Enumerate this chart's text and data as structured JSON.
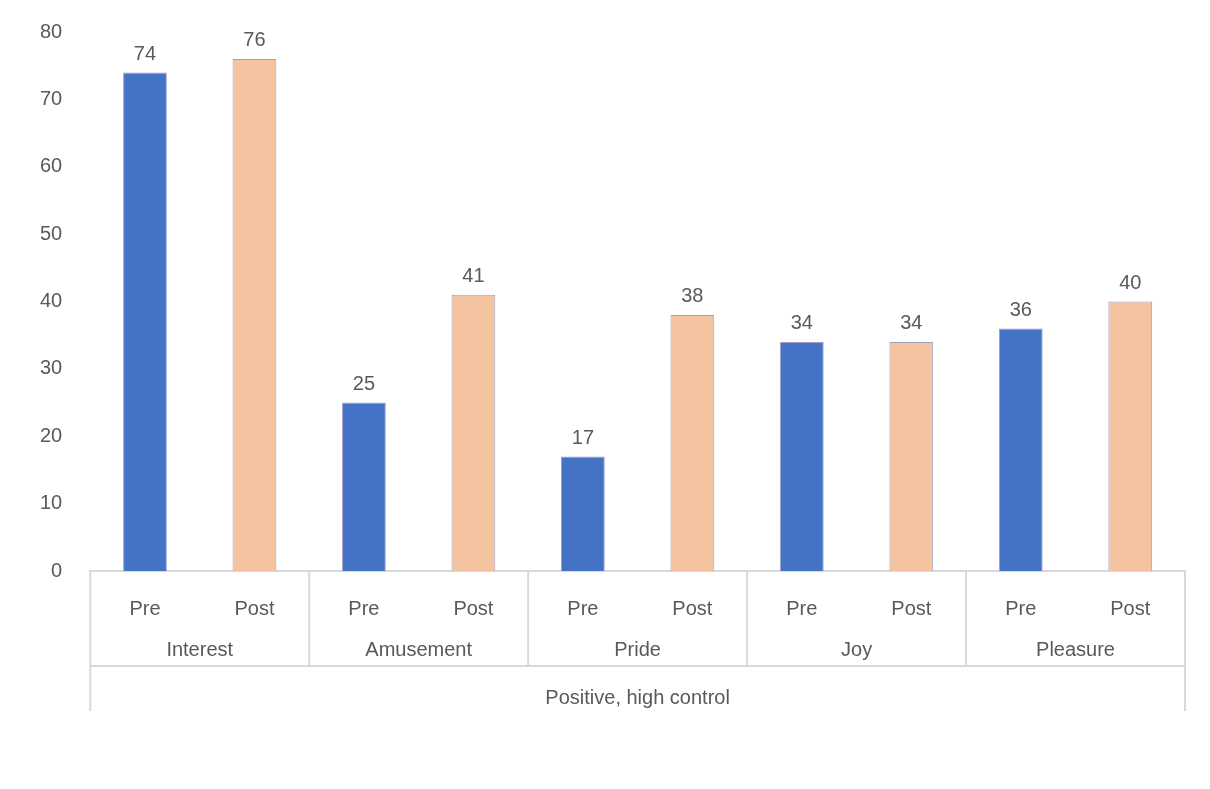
{
  "chart_data": {
    "type": "bar",
    "categories": [
      "Pre",
      "Post",
      "Pre",
      "Post",
      "Pre",
      "Post",
      "Pre",
      "Post",
      "Pre",
      "Post"
    ],
    "values": [
      74,
      76,
      25,
      41,
      17,
      38,
      34,
      34,
      36,
      40
    ],
    "colors": [
      "#4472c4",
      "#f4c4a0",
      "#4472c4",
      "#f4c4a0",
      "#4472c4",
      "#f4c4a0",
      "#4472c4",
      "#f4c4a0",
      "#4472c4",
      "#f4c4a0"
    ],
    "ylim": [
      0,
      80
    ],
    "yticks": [
      0,
      10,
      20,
      30,
      40,
      50,
      60,
      70,
      80
    ],
    "grid": false,
    "legend": false,
    "data_labels": true,
    "xlabel": "Positive, high control",
    "annotations": [
      "Interest",
      "Amusement",
      "Pride",
      "Joy",
      "Pleasure"
    ]
  }
}
